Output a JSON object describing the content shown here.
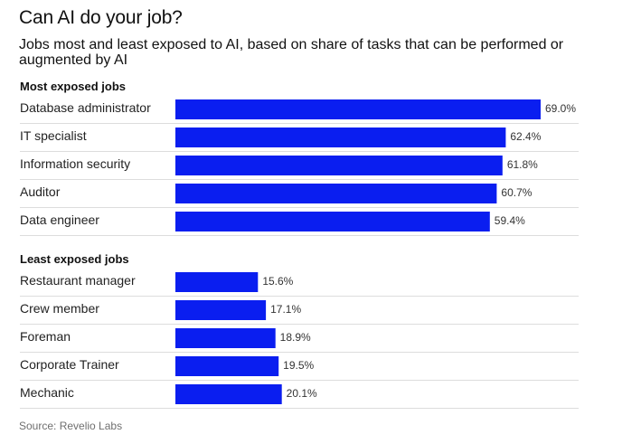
{
  "title": "Can AI do your job?",
  "subtitle": "Jobs most and least exposed to AI, based on share of tasks that can be performed or augmented by AI",
  "source": "Source: Revelio Labs",
  "colors": {
    "bar": "#0a1ef0",
    "divider": "#dddddd"
  },
  "chart_data": {
    "type": "bar",
    "orientation": "horizontal",
    "value_format": "percent",
    "groups": [
      {
        "label": "Most exposed jobs",
        "categories": [
          "Database administrator",
          "IT specialist",
          "Information security",
          "Auditor",
          "Data engineer"
        ],
        "values": [
          69.0,
          62.4,
          61.8,
          60.7,
          59.4
        ],
        "value_labels": [
          "69.0%",
          "62.4%",
          "61.8%",
          "60.7%",
          "59.4%"
        ]
      },
      {
        "label": "Least exposed jobs",
        "categories": [
          "Restaurant manager",
          "Crew member",
          "Foreman",
          "Corporate Trainer",
          "Mechanic"
        ],
        "values": [
          15.6,
          17.1,
          18.9,
          19.5,
          20.1
        ],
        "value_labels": [
          "15.6%",
          "17.1%",
          "18.9%",
          "19.5%",
          "20.1%"
        ]
      }
    ],
    "xlim": [
      0,
      69.0
    ],
    "grid": false,
    "legend": "none"
  }
}
